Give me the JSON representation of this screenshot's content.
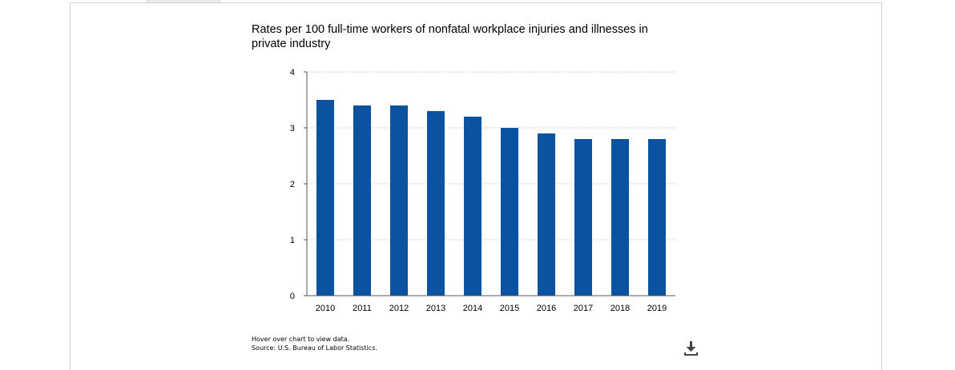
{
  "chart_data": {
    "type": "bar",
    "title": "Rates per 100 full-time workers of nonfatal workplace injuries and illnesses in private industry",
    "categories": [
      "2010",
      "2011",
      "2012",
      "2013",
      "2014",
      "2015",
      "2016",
      "2017",
      "2018",
      "2019"
    ],
    "values": [
      3.5,
      3.4,
      3.4,
      3.3,
      3.2,
      3.0,
      2.9,
      2.8,
      2.8,
      2.8
    ],
    "ylim": [
      0,
      4
    ],
    "yticks": [
      "0",
      "1",
      "2",
      "3",
      "4"
    ],
    "xlabel": "",
    "ylabel": "",
    "grid": true,
    "bar_color": "#0b52a0"
  },
  "footer": {
    "hover_note": "Hover over chart to view data.",
    "source": "Source: U.S. Bureau of Labor Statistics."
  },
  "icons": {
    "download": "download-icon"
  }
}
